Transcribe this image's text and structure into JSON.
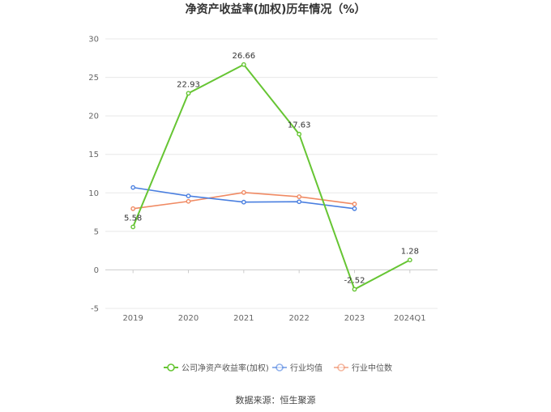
{
  "chart_data": {
    "type": "line",
    "title": "净资产收益率(加权)历年情况（%）",
    "xlabel": "",
    "ylabel": "",
    "categories": [
      "2019",
      "2020",
      "2021",
      "2022",
      "2023",
      "2024Q1"
    ],
    "ylim": [
      -5,
      30
    ],
    "yticks": [
      -5,
      0,
      5,
      10,
      15,
      20,
      25,
      30
    ],
    "grid": true,
    "legend_position": "bottom",
    "series": [
      {
        "name": "公司净资产收益率(加权)",
        "color": "#66c533",
        "values": [
          5.58,
          22.93,
          26.66,
          17.63,
          -2.52,
          1.28
        ],
        "data_labels": [
          "5.58",
          "22.93",
          "26.66",
          "17.63",
          "-2.52",
          "1.28"
        ]
      },
      {
        "name": "行业均值",
        "color": "#4a7fe0",
        "values": [
          10.7,
          9.6,
          8.8,
          8.85,
          7.95,
          null
        ]
      },
      {
        "name": "行业中位数",
        "color": "#f08a63",
        "values": [
          7.95,
          8.9,
          10.05,
          9.5,
          8.55,
          null
        ]
      }
    ]
  },
  "source": "数据来源：恒生聚源"
}
